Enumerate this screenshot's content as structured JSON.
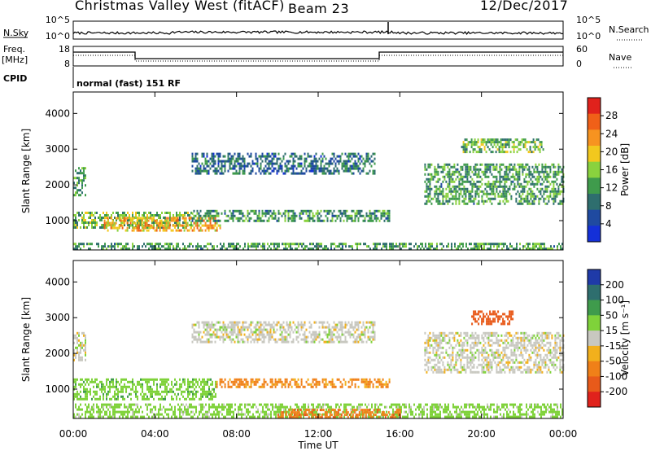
{
  "header": {
    "radar_title": "Christmas Valley West (fitACF)",
    "beam_label": "Beam 23",
    "date": "12/Dec/2017"
  },
  "status_panels": {
    "nsky_label": "N.Sky",
    "nsky_ticks": [
      "10^5",
      "10^0"
    ],
    "nsearch_label": "N.Search",
    "nsearch_ticks": [
      "10^5",
      "10^0"
    ],
    "freq_label_line1": "Freq.",
    "freq_label_line2": "[MHz]",
    "freq_ticks": [
      "18",
      "8"
    ],
    "nave_label": "Nave",
    "nave_ticks": [
      "60",
      "0"
    ],
    "cpid_label": "CPID",
    "cpid_text": "normal (fast) 151 RF"
  },
  "colors": {
    "power": [
      "#1430d8",
      "#1f4aa0",
      "#2e6e6e",
      "#3f9b4c",
      "#8ad23e",
      "#f2c81e",
      "#f79320",
      "#f06018",
      "#e0221c"
    ],
    "velocity": [
      "#1f3aa8",
      "#2e6e6e",
      "#3f9b4c",
      "#7fd23a",
      "#c8c8c0",
      "#f2b01c",
      "#f08018",
      "#e85a1a",
      "#e0221c"
    ]
  },
  "chart_data": [
    {
      "type": "heatmap",
      "panel": "power",
      "ylabel": "Slant Range [km]",
      "ylim": [
        180,
        4600
      ],
      "yticks": [
        "1000",
        "2000",
        "3000",
        "4000"
      ],
      "x_ticks": [
        "00:00",
        "04:00",
        "08:00",
        "12:00",
        "16:00",
        "20:00",
        "00:00"
      ],
      "colorbar_label": "Power [dB]",
      "colorbar_ticks": [
        "4",
        "8",
        "12",
        "16",
        "20",
        "24",
        "28"
      ],
      "colorbar_range": [
        0,
        32
      ],
      "echo_bands": [
        {
          "t0": 0.0,
          "t1": 0.6,
          "r0": 1700,
          "r1": 2500,
          "level": 12
        },
        {
          "t0": 0.0,
          "t1": 5.8,
          "r0": 800,
          "r1": 1250,
          "level": 14
        },
        {
          "t0": 1.5,
          "t1": 7.2,
          "r0": 700,
          "r1": 1100,
          "level": 22
        },
        {
          "t0": 5.8,
          "t1": 15.5,
          "r0": 1000,
          "r1": 1300,
          "level": 11
        },
        {
          "t0": 5.8,
          "t1": 14.8,
          "r0": 2300,
          "r1": 2900,
          "level": 8
        },
        {
          "t0": 0.0,
          "t1": 24.0,
          "r0": 200,
          "r1": 380,
          "level": 12
        },
        {
          "t0": 17.2,
          "t1": 24.0,
          "r0": 1500,
          "r1": 2600,
          "level": 12
        },
        {
          "t0": 19.0,
          "t1": 23.0,
          "r0": 2900,
          "r1": 3300,
          "level": 14
        }
      ]
    },
    {
      "type": "heatmap",
      "panel": "velocity",
      "ylabel": "Slant Range [km]",
      "ylim": [
        180,
        4600
      ],
      "yticks": [
        "1000",
        "2000",
        "3000",
        "4000"
      ],
      "x_ticks": [
        "00:00",
        "04:00",
        "08:00",
        "12:00",
        "16:00",
        "20:00",
        "00:00"
      ],
      "xlabel": "Time UT",
      "colorbar_label": "Velocity [m s⁻¹]",
      "colorbar_ticks": [
        "200",
        "100",
        "50",
        "15",
        "-15",
        "-50",
        "-100",
        "-200"
      ],
      "echo_bands": [
        {
          "t0": 0.0,
          "t1": 0.6,
          "r0": 1800,
          "r1": 2600,
          "velocity": 0
        },
        {
          "t0": 0.0,
          "t1": 7.0,
          "r0": 700,
          "r1": 1300,
          "velocity": 35
        },
        {
          "t0": 7.0,
          "t1": 15.5,
          "r0": 1050,
          "r1": 1300,
          "velocity": -60
        },
        {
          "t0": 5.8,
          "t1": 14.8,
          "r0": 2300,
          "r1": 2900,
          "velocity": 0
        },
        {
          "t0": 0.0,
          "t1": 24.0,
          "r0": 200,
          "r1": 600,
          "velocity": 30
        },
        {
          "t0": 10.0,
          "t1": 16.0,
          "r0": 200,
          "r1": 450,
          "velocity": -90
        },
        {
          "t0": 17.2,
          "t1": 24.0,
          "r0": 1500,
          "r1": 2600,
          "velocity": 0
        },
        {
          "t0": 19.5,
          "t1": 21.5,
          "r0": 2800,
          "r1": 3200,
          "velocity": -180
        }
      ]
    }
  ]
}
